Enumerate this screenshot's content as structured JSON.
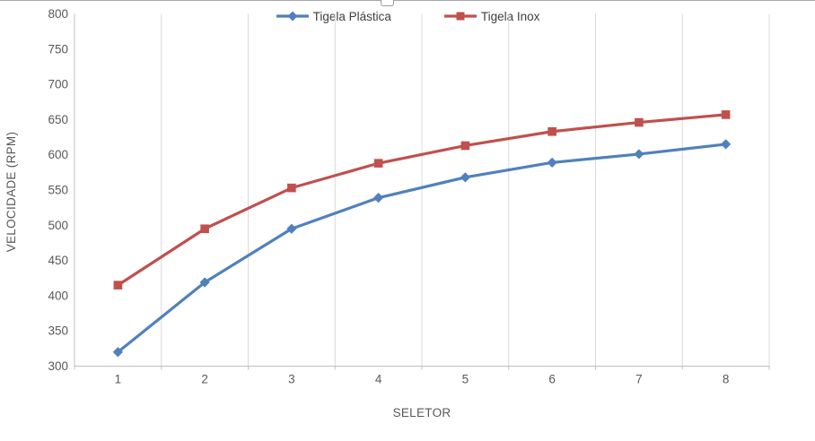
{
  "legend": {
    "items": [
      {
        "label": "Tigela Plástica",
        "marker": "diamond"
      },
      {
        "label": "Tigela Inox",
        "marker": "square"
      }
    ]
  },
  "colors": {
    "series_blue": "#4F81BD",
    "series_red": "#C0504D",
    "gridline": "#D9D9D9",
    "axis_line": "#BFBFBF",
    "tick_text": "#595959",
    "legend_text": "#404040"
  },
  "chart_data": {
    "type": "line",
    "title": "",
    "categories": [
      "1",
      "2",
      "3",
      "4",
      "5",
      "6",
      "7",
      "8"
    ],
    "series": [
      {
        "name": "Tigela Plástica",
        "color": "#4F81BD",
        "marker": "diamond",
        "values": [
          320,
          419,
          495,
          539,
          568,
          589,
          601,
          615
        ]
      },
      {
        "name": "Tigela Inox",
        "color": "#C0504D",
        "marker": "square",
        "values": [
          415,
          495,
          553,
          588,
          613,
          633,
          646,
          657
        ]
      }
    ],
    "xlabel": "SELETOR",
    "ylabel": "VELOCIDADE (RPM)",
    "ylim": [
      300,
      800
    ],
    "y_step": 50,
    "y_ticks": [
      "300",
      "350",
      "400",
      "450",
      "500",
      "550",
      "600",
      "650",
      "700",
      "750",
      "800"
    ],
    "grid": "vertical-only",
    "legend_position": "top-center"
  }
}
